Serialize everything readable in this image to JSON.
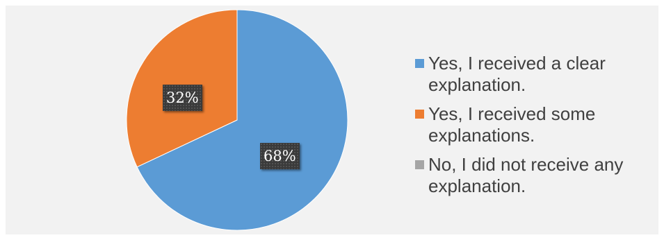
{
  "chart_data": {
    "type": "pie",
    "title": "",
    "slices": [
      {
        "name": "Yes, I received a clear explanation.",
        "value": 68,
        "label": "68%",
        "color": "#5b9bd5"
      },
      {
        "name": "Yes, I received some explanations.",
        "value": 32,
        "label": "32%",
        "color": "#ed7d31"
      },
      {
        "name": "No, I did not receive any explanation.",
        "value": 0,
        "label": "",
        "color": "#a5a5a5"
      }
    ],
    "legend": {
      "placement": "right",
      "entries": [
        "Yes, I received a clear explanation.",
        "Yes, I received some explanations.",
        "No, I did not receive any explanation."
      ]
    },
    "start_angle_deg": 0,
    "direction": "clockwise"
  }
}
